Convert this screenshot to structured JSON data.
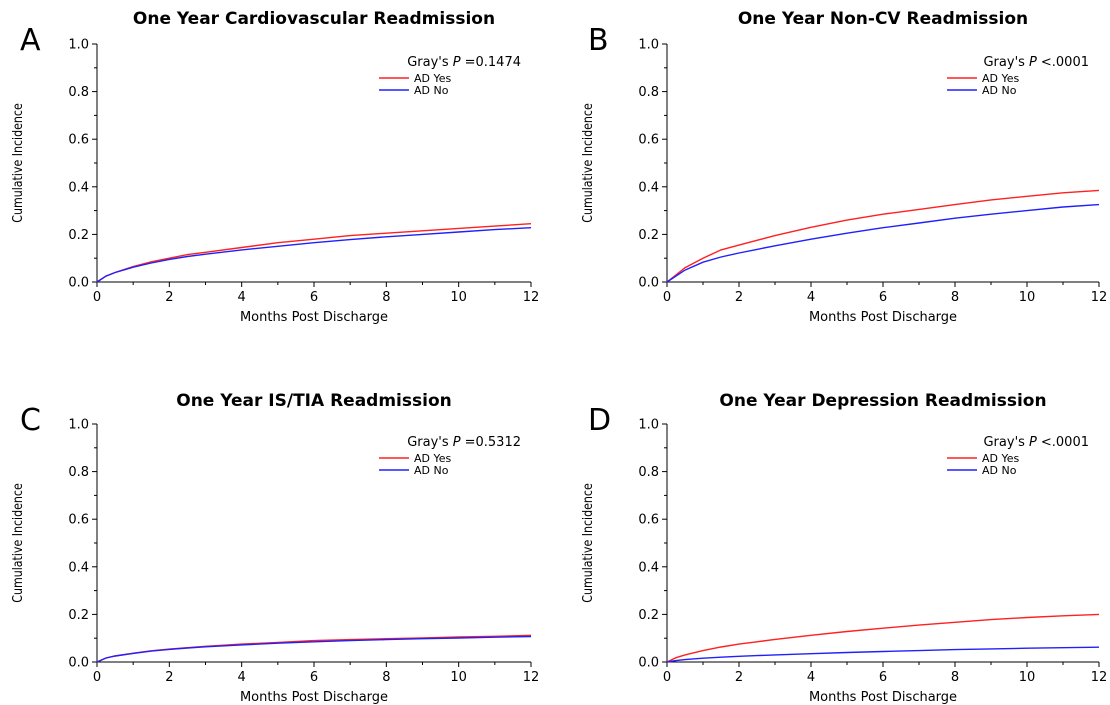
{
  "colors": {
    "ad_yes": "#ff2020",
    "ad_no": "#2020ff"
  },
  "chart_data": [
    {
      "type": "line",
      "panel": "A",
      "title": "One Year Cardiovascular Readmission",
      "xlabel": "Months Post Discharge",
      "ylabel": "Cumulative Incidence",
      "xlim": [
        0,
        12
      ],
      "ylim": [
        0,
        1.0
      ],
      "xticks": [
        "0",
        "2",
        "4",
        "6",
        "8",
        "10",
        "12"
      ],
      "yticks": [
        "0.0",
        "0.2",
        "0.4",
        "0.6",
        "0.8",
        "1.0"
      ],
      "stat_prefix": "Gray's ",
      "stat_p": "P",
      "stat_value": "=0.1474",
      "series": [
        {
          "name": "AD Yes",
          "color": "#ff2020",
          "x": [
            0,
            0.25,
            0.5,
            1,
            1.5,
            2,
            2.5,
            3,
            4,
            5,
            6,
            7,
            8,
            9,
            10,
            11,
            12
          ],
          "y": [
            0,
            0.025,
            0.04,
            0.065,
            0.085,
            0.1,
            0.115,
            0.125,
            0.145,
            0.165,
            0.18,
            0.195,
            0.205,
            0.215,
            0.225,
            0.235,
            0.245
          ]
        },
        {
          "name": "AD No",
          "color": "#2020ff",
          "x": [
            0,
            0.25,
            0.5,
            1,
            1.5,
            2,
            2.5,
            3,
            4,
            5,
            6,
            7,
            8,
            9,
            10,
            11,
            12
          ],
          "y": [
            0,
            0.025,
            0.04,
            0.062,
            0.08,
            0.095,
            0.107,
            0.117,
            0.135,
            0.15,
            0.165,
            0.178,
            0.19,
            0.2,
            0.21,
            0.22,
            0.228
          ]
        }
      ]
    },
    {
      "type": "line",
      "panel": "B",
      "title": "One Year Non-CV Readmission",
      "xlabel": "Months Post Discharge",
      "ylabel": "Cumulative Incidence",
      "xlim": [
        0,
        12
      ],
      "ylim": [
        0,
        1.0
      ],
      "xticks": [
        "0",
        "2",
        "4",
        "6",
        "8",
        "10",
        "12"
      ],
      "yticks": [
        "0.0",
        "0.2",
        "0.4",
        "0.6",
        "0.8",
        "1.0"
      ],
      "stat_prefix": "Gray's ",
      "stat_p": "P",
      "stat_value": "<.0001",
      "series": [
        {
          "name": "AD Yes",
          "color": "#ff2020",
          "x": [
            0,
            0.25,
            0.5,
            1,
            1.5,
            2,
            2.5,
            3,
            4,
            5,
            6,
            7,
            8,
            9,
            10,
            11,
            12
          ],
          "y": [
            0,
            0.03,
            0.06,
            0.1,
            0.135,
            0.155,
            0.175,
            0.195,
            0.23,
            0.26,
            0.285,
            0.305,
            0.325,
            0.345,
            0.36,
            0.375,
            0.385
          ]
        },
        {
          "name": "AD No",
          "color": "#2020ff",
          "x": [
            0,
            0.25,
            0.5,
            1,
            1.5,
            2,
            2.5,
            3,
            4,
            5,
            6,
            7,
            8,
            9,
            10,
            11,
            12
          ],
          "y": [
            0,
            0.025,
            0.05,
            0.083,
            0.105,
            0.122,
            0.137,
            0.152,
            0.18,
            0.205,
            0.228,
            0.248,
            0.268,
            0.285,
            0.3,
            0.315,
            0.325
          ]
        }
      ]
    },
    {
      "type": "line",
      "panel": "C",
      "title": "One Year IS/TIA Readmission",
      "xlabel": "Months Post Discharge",
      "ylabel": "Cumulative Incidence",
      "xlim": [
        0,
        12
      ],
      "ylim": [
        0,
        1.0
      ],
      "xticks": [
        "0",
        "2",
        "4",
        "6",
        "8",
        "10",
        "12"
      ],
      "yticks": [
        "0.0",
        "0.2",
        "0.4",
        "0.6",
        "0.8",
        "1.0"
      ],
      "stat_prefix": "Gray's ",
      "stat_p": "P",
      "stat_value": "=0.5312",
      "series": [
        {
          "name": "AD Yes",
          "color": "#ff2020",
          "x": [
            0,
            0.25,
            0.5,
            1,
            1.5,
            2,
            2.5,
            3,
            4,
            5,
            6,
            7,
            8,
            9,
            10,
            11,
            12
          ],
          "y": [
            0,
            0.017,
            0.025,
            0.037,
            0.047,
            0.054,
            0.06,
            0.066,
            0.075,
            0.082,
            0.09,
            0.094,
            0.098,
            0.101,
            0.105,
            0.108,
            0.112
          ]
        },
        {
          "name": "AD No",
          "color": "#2020ff",
          "x": [
            0,
            0.25,
            0.5,
            1,
            1.5,
            2,
            2.5,
            3,
            4,
            5,
            6,
            7,
            8,
            9,
            10,
            11,
            12
          ],
          "y": [
            0,
            0.017,
            0.025,
            0.036,
            0.046,
            0.053,
            0.059,
            0.064,
            0.072,
            0.079,
            0.085,
            0.09,
            0.094,
            0.098,
            0.101,
            0.104,
            0.107
          ]
        }
      ]
    },
    {
      "type": "line",
      "panel": "D",
      "title": "One Year Depression Readmission",
      "xlabel": "Months Post Discharge",
      "ylabel": "Cumulative Incidence",
      "xlim": [
        0,
        12
      ],
      "ylim": [
        0,
        1.0
      ],
      "xticks": [
        "0",
        "2",
        "4",
        "6",
        "8",
        "10",
        "12"
      ],
      "yticks": [
        "0.0",
        "0.2",
        "0.4",
        "0.6",
        "0.8",
        "1.0"
      ],
      "stat_prefix": "Gray's ",
      "stat_p": "P",
      "stat_value": "<.0001",
      "series": [
        {
          "name": "AD Yes",
          "color": "#ff2020",
          "x": [
            0,
            0.25,
            0.5,
            1,
            1.5,
            2,
            2.5,
            3,
            4,
            5,
            6,
            7,
            8,
            9,
            10,
            11,
            12
          ],
          "y": [
            0,
            0.018,
            0.03,
            0.048,
            0.063,
            0.075,
            0.085,
            0.095,
            0.112,
            0.128,
            0.142,
            0.155,
            0.167,
            0.178,
            0.187,
            0.194,
            0.2
          ]
        },
        {
          "name": "AD No",
          "color": "#2020ff",
          "x": [
            0,
            0.25,
            0.5,
            1,
            1.5,
            2,
            2.5,
            3,
            4,
            5,
            6,
            7,
            8,
            9,
            10,
            11,
            12
          ],
          "y": [
            0,
            0.006,
            0.01,
            0.016,
            0.02,
            0.024,
            0.027,
            0.03,
            0.035,
            0.04,
            0.044,
            0.048,
            0.052,
            0.055,
            0.058,
            0.06,
            0.062
          ]
        }
      ]
    }
  ]
}
